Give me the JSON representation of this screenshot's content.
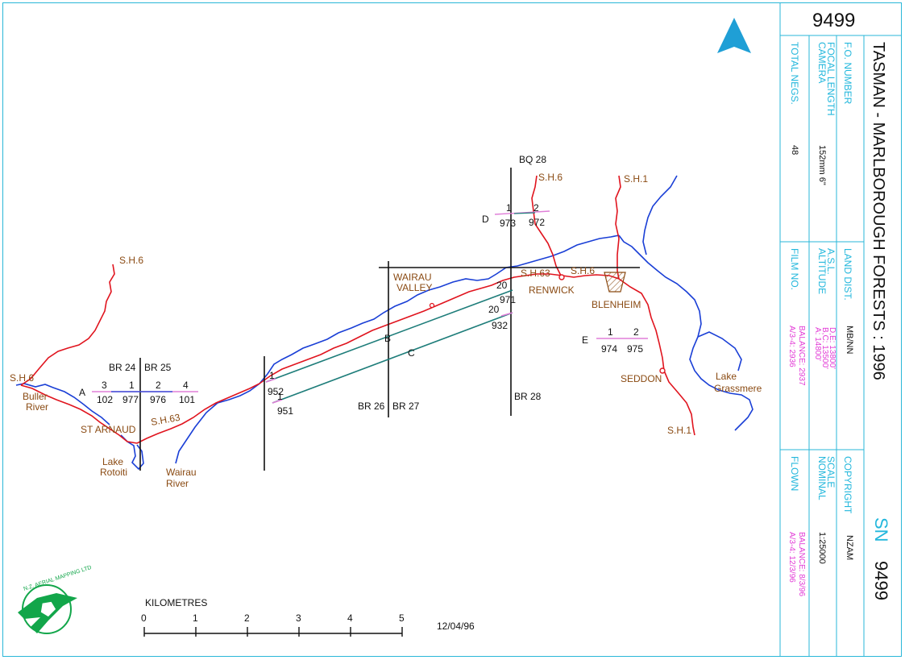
{
  "title_block": {
    "sortie_top": "9499",
    "project_title": "TASMAN - MARLBOROUGH FORESTS : 1996",
    "sn_label": "SN",
    "sn_number": "9499",
    "fo_number_label": "F.O. NUMBER",
    "land_dist_label": "LAND DIST.",
    "land_dist_value": "MB/NN",
    "copyright_label": "COPYRIGHT",
    "copyright_value": "NZAM",
    "camera_label_1": "CAMERA",
    "camera_label_2": "FOCAL LENGTH",
    "camera_value": "152mm 6\"",
    "altitude_label_1": "ALTITUDE",
    "altitude_label_2": "A.S.L.",
    "altitude_values": [
      "A: 14800'",
      "B,C: 13500'",
      "D,E: 13800'"
    ],
    "scale_label_1": "NOMINAL",
    "scale_label_2": "SCALE",
    "scale_value": "1:25000",
    "total_negs_label": "TOTAL NEGS.",
    "total_negs_value": "48",
    "film_no_label": "FILM NO.",
    "film_no_values": [
      "A/3-4: 2936",
      "BALANCE: 2937"
    ],
    "flown_label": "FLOWN",
    "flown_values": [
      "A/3-4: 12/3/96",
      "BALANCE: 8/3/96"
    ]
  },
  "north_arrow": {
    "label": "N"
  },
  "scale_bar": {
    "title": "KILOMETRES",
    "ticks": [
      "0",
      "1",
      "2",
      "3",
      "4",
      "5"
    ]
  },
  "date": "12/04/96",
  "logo": {
    "text": "N.Z. AERIAL MAPPING LTD"
  },
  "grid_labels": {
    "br24": "BR 24",
    "br25": "BR 25",
    "br26": "BR 26",
    "br27": "BR 27",
    "br28": "BR 28",
    "bq28": "BQ 28"
  },
  "runs": {
    "a": {
      "label": "A",
      "top": [
        "3",
        "1",
        "2",
        "4"
      ],
      "bottom": [
        "102",
        "977",
        "976",
        "101"
      ]
    },
    "b": {
      "label": "B",
      "start_top": "1",
      "start_bottom": "952",
      "end": "20"
    },
    "c": {
      "label": "C",
      "start_top": "1",
      "start_bottom": "951",
      "end_top": "20",
      "end_bottom": "971",
      "end_extra": "932"
    },
    "d": {
      "label": "D",
      "top": [
        "1",
        "2"
      ],
      "bottom": [
        "973",
        "972"
      ]
    },
    "e": {
      "label": "E",
      "top": [
        "1",
        "2"
      ],
      "bottom": [
        "974",
        "975"
      ]
    }
  },
  "places": {
    "buller_river_1": "Buller",
    "buller_river_2": "River",
    "st_arnaud": "ST ARNAUD",
    "lake_rotoiti_1": "Lake",
    "lake_rotoiti_2": "Rotoiti",
    "wairau_river_1": "Wairau",
    "wairau_river_2": "River",
    "wairau_valley_1": "WAIRAU",
    "wairau_valley_2": "VALLEY",
    "renwick": "RENWICK",
    "blenheim": "BLENHEIM",
    "seddon": "SEDDON",
    "lake_grassmere_1": "Lake",
    "lake_grassmere_2": "Grassmere"
  },
  "roads": {
    "sh6_north": "S.H.6",
    "sh6_west": "S.H.6",
    "sh6_top": "S.H.6",
    "sh6_blenheim": "S.H.6",
    "sh63_west": "S.H.63",
    "sh63_east": "S.H.63",
    "sh1_north": "S.H.1",
    "sh1_south": "S.H.1"
  },
  "colors": {
    "frame": "#2ab7d8",
    "river": "#1a3fd6",
    "road": "#e0141e",
    "run_line": "#1e7d7a",
    "label": "#8a4a12",
    "magenta": "#e23ad6"
  }
}
